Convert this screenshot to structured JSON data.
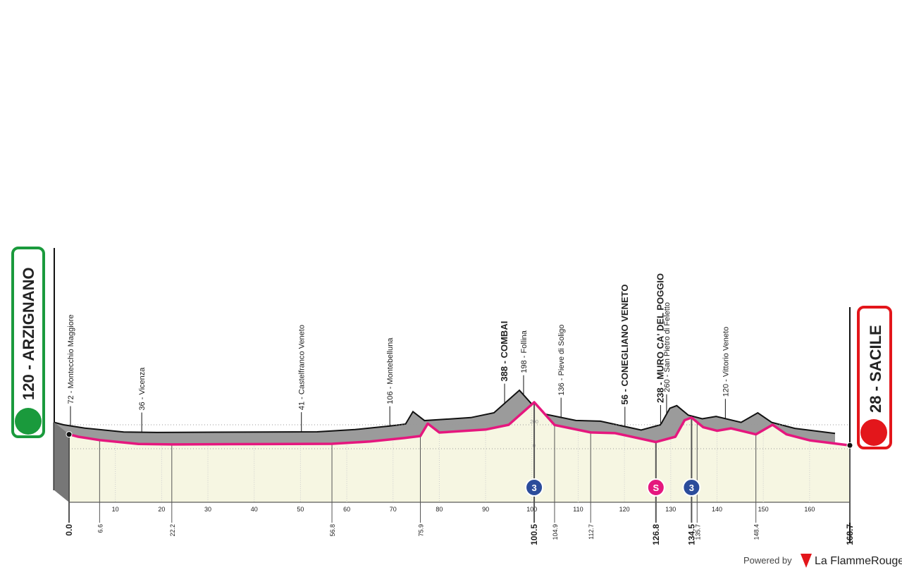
{
  "chart_data": {
    "type": "elevation-profile",
    "start": "120 - ARZIGNANO",
    "finish": "28 - SACILE",
    "x": [
      0,
      2,
      6.6,
      15,
      22.2,
      35,
      56.8,
      65,
      72.5,
      75.9,
      77.5,
      80,
      90,
      95,
      100.5,
      104.9,
      112.7,
      118,
      126.8,
      131,
      133,
      134.5,
      137,
      140,
      143,
      148.4,
      152,
      155,
      160,
      168.7
    ],
    "values": [
      120,
      100,
      72,
      40,
      36,
      38,
      41,
      60,
      90,
      106,
      210,
      135,
      160,
      200,
      388,
      198,
      136,
      130,
      56,
      100,
      238,
      260,
      180,
      150,
      170,
      120,
      200,
      120,
      70,
      28
    ],
    "color": "#e5177e",
    "xlim": [
      0,
      168.7
    ],
    "ylim": [
      0,
      200
    ],
    "yticks": [
      0,
      200
    ],
    "xticks": [
      10,
      20,
      30,
      40,
      50,
      60,
      70,
      80,
      90,
      100,
      110,
      120,
      130,
      140,
      150,
      160
    ],
    "places": [
      {
        "label": "72 - Montecchio Maggiore",
        "km": 3.5,
        "bold": false
      },
      {
        "label": "36 - Vicenza",
        "km": 18.9,
        "bold": false
      },
      {
        "label": "41 - Castelfranco Veneto",
        "km": 53.4,
        "bold": false
      },
      {
        "label": "106 - Montebelluna",
        "km": 72.5,
        "bold": false
      },
      {
        "label": "388 - COMBAI",
        "km": 97.3,
        "bold": true
      },
      {
        "label": "198 - Follina",
        "km": 101.4,
        "bold": false
      },
      {
        "label": "136 - Pieve di Soligo",
        "km": 109.5,
        "bold": false
      },
      {
        "label": "56 - CONEGLIANO VENETO",
        "km": 123.3,
        "bold": true
      },
      {
        "label": "238 - MURO CA' DEL POGGIO",
        "km": 131,
        "bold": true
      },
      {
        "label": "260 - San Pietro di Feletto",
        "km": 132.3,
        "bold": false
      },
      {
        "label": "120 - Vittorio Veneto",
        "km": 145,
        "bold": false
      }
    ],
    "km_markers": [
      {
        "value": 0,
        "label": "0.0"
      },
      6.6,
      22.2,
      56.8,
      75.9,
      100.5,
      104.9,
      112.7,
      126.8,
      134.5,
      135.7,
      148.4,
      168.7
    ],
    "climbs": [
      {
        "km": 100.5,
        "label": "3",
        "color": "#2b4c9b"
      },
      {
        "km": 126.8,
        "label": "S",
        "color": "#e5177e"
      },
      {
        "km": 134.5,
        "label": "3",
        "color": "#2b4c9b"
      }
    ]
  },
  "footer": {
    "powered": "Powered by",
    "brand": "La FlammeRouge"
  }
}
